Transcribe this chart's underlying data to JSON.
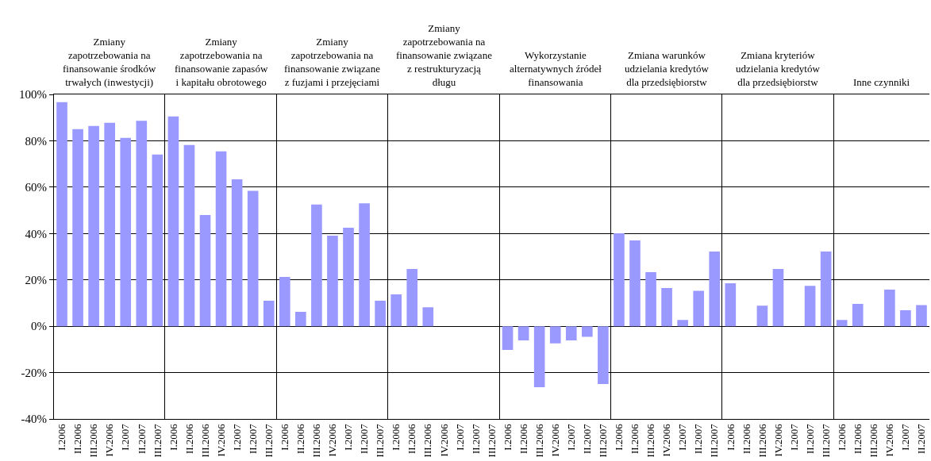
{
  "chart_data": [
    {
      "type": "bar",
      "title": "Zmiany\nzapotrzebowania na\nfinansowanie środków\ntrwałych (inwestycji)",
      "categories": [
        "I.2006",
        "II.2006",
        "III.2006",
        "IV.2006",
        "I.2007",
        "II.2007",
        "III.2007"
      ],
      "values": [
        96.7,
        85.0,
        86.4,
        87.8,
        81.3,
        88.6,
        74.1
      ],
      "color": "#9999ff",
      "ylim": [
        -40,
        100
      ],
      "yticks": [
        {
          "value": -40,
          "label": "-40%"
        },
        {
          "value": -20,
          "label": "-20%"
        },
        {
          "value": 0,
          "label": "0%"
        },
        {
          "value": 20,
          "label": "20%"
        },
        {
          "value": 40,
          "label": "40%"
        },
        {
          "value": 60,
          "label": "60%"
        },
        {
          "value": 80,
          "label": "80%"
        },
        {
          "value": 100,
          "label": "100%"
        }
      ],
      "grid": "y"
    },
    {
      "type": "bar",
      "title": "Zmiany\nzapotrzebowania na\nfinansowanie zapasów\ni kapitału obrotowego",
      "categories": [
        "I.2006",
        "II.2006",
        "III.2006",
        "IV.2006",
        "I.2007",
        "II.2007",
        "III.2007"
      ],
      "values": [
        90.5,
        78.2,
        48.0,
        75.4,
        63.4,
        58.4,
        11.0
      ],
      "color": "#9999ff",
      "ylim": [
        -40,
        100
      ],
      "yticks": [
        {
          "value": -40,
          "label": null
        },
        {
          "value": -20,
          "label": null
        },
        {
          "value": 0,
          "label": null
        },
        {
          "value": 20,
          "label": null
        },
        {
          "value": 40,
          "label": null
        },
        {
          "value": 60,
          "label": null
        },
        {
          "value": 80,
          "label": null
        },
        {
          "value": 100,
          "label": null
        }
      ],
      "grid": "y",
      "tick_labels": "x"
    },
    {
      "type": "bar",
      "title": "Zmiany\nzapotrzebowania na\nfinansowanie związane\nz fuzjami i przejęciami",
      "categories": [
        "I.2006",
        "II.2006",
        "III.2006",
        "IV.2006",
        "I.2007",
        "II.2007",
        "III.2007"
      ],
      "values": [
        21.3,
        6.2,
        52.5,
        39.1,
        42.5,
        53.0,
        11.0
      ],
      "color": "#9999ff",
      "ylim": [
        -40,
        100
      ],
      "yticks": [
        {
          "value": -40,
          "label": null
        },
        {
          "value": -20,
          "label": null
        },
        {
          "value": 0,
          "label": null
        },
        {
          "value": 20,
          "label": null
        },
        {
          "value": 40,
          "label": null
        },
        {
          "value": 60,
          "label": null
        },
        {
          "value": 80,
          "label": null
        },
        {
          "value": 100,
          "label": null
        }
      ],
      "grid": "y",
      "tick_labels": "x"
    },
    {
      "type": "bar",
      "title": "Zmiany\nzapotrzebowania na\nfinansowanie związane\nz restrukturyzacją\ndługu",
      "categories": [
        "I.2006",
        "II.2006",
        "III.2006",
        "IV.2006",
        "I.2007",
        "II.2007",
        "III.2007"
      ],
      "values": [
        13.7,
        24.7,
        8.2,
        null,
        null,
        null,
        null
      ],
      "color": "#9999ff",
      "ylim": [
        -40,
        100
      ],
      "yticks": [
        {
          "value": -40,
          "label": null
        },
        {
          "value": -20,
          "label": null
        },
        {
          "value": 0,
          "label": null
        },
        {
          "value": 20,
          "label": null
        },
        {
          "value": 40,
          "label": null
        },
        {
          "value": 60,
          "label": null
        },
        {
          "value": 80,
          "label": null
        },
        {
          "value": 100,
          "label": null
        }
      ],
      "grid": "y",
      "tick_labels": "x"
    },
    {
      "type": "bar",
      "title": "Wykorzystanie\nalternatywnych źródeł\nfinansowania",
      "categories": [
        "I.2006",
        "II.2006",
        "III.2006",
        "IV.2006",
        "I.2007",
        "II.2007",
        "III.2007"
      ],
      "values": [
        -10.2,
        -6.1,
        -26.3,
        -7.4,
        -6.1,
        -4.6,
        -24.9
      ],
      "color": "#9999ff",
      "ylim": [
        -40,
        100
      ],
      "yticks": [
        {
          "value": -40,
          "label": null
        },
        {
          "value": -20,
          "label": null
        },
        {
          "value": 0,
          "label": null
        },
        {
          "value": 20,
          "label": null
        },
        {
          "value": 40,
          "label": null
        },
        {
          "value": 60,
          "label": null
        },
        {
          "value": 80,
          "label": null
        },
        {
          "value": 100,
          "label": null
        }
      ],
      "grid": "y",
      "tick_labels": "x"
    },
    {
      "type": "bar",
      "title": "Zmiana warunków\nudzielania kredytów\ndla przedsiębiorstw",
      "categories": [
        "I.2006",
        "II.2006",
        "III.2006",
        "IV.2006",
        "I.2007",
        "II.2007",
        "III.2007"
      ],
      "values": [
        40.1,
        37.0,
        23.3,
        16.5,
        2.7,
        15.3,
        32.2
      ],
      "color": "#9999ff",
      "ylim": [
        -40,
        100
      ],
      "yticks": [
        {
          "value": -40,
          "label": null
        },
        {
          "value": -20,
          "label": null
        },
        {
          "value": 0,
          "label": null
        },
        {
          "value": 20,
          "label": null
        },
        {
          "value": 40,
          "label": null
        },
        {
          "value": 60,
          "label": null
        },
        {
          "value": 80,
          "label": null
        },
        {
          "value": 100,
          "label": null
        }
      ],
      "grid": "y",
      "tick_labels": "x"
    },
    {
      "type": "bar",
      "title": "Zmiana kryteriów\nudzielania kredytów\ndla przedsiębiorstw",
      "categories": [
        "I.2006",
        "II.2006",
        "III.2006",
        "IV.2006",
        "I.2007",
        "II.2007",
        "III.2007"
      ],
      "values": [
        18.5,
        null,
        8.9,
        24.7,
        null,
        17.4,
        32.2
      ],
      "color": "#9999ff",
      "ylim": [
        -40,
        100
      ],
      "yticks": [
        {
          "value": -40,
          "label": null
        },
        {
          "value": -20,
          "label": null
        },
        {
          "value": 0,
          "label": null
        },
        {
          "value": 20,
          "label": null
        },
        {
          "value": 40,
          "label": null
        },
        {
          "value": 60,
          "label": null
        },
        {
          "value": 80,
          "label": null
        },
        {
          "value": 100,
          "label": null
        }
      ],
      "grid": "y",
      "tick_labels": "x"
    },
    {
      "type": "bar",
      "title": "Inne czynniki",
      "categories": [
        "I.2006",
        "II.2006",
        "III.2006",
        "IV.2006",
        "I.2007",
        "II.2007"
      ],
      "values": [
        2.7,
        9.6,
        null,
        15.8,
        6.9,
        9.1
      ],
      "color": "#9999ff",
      "ylim": [
        -40,
        100
      ],
      "yticks": [
        {
          "value": -40,
          "label": null
        },
        {
          "value": -20,
          "label": null
        },
        {
          "value": 0,
          "label": null
        },
        {
          "value": 20,
          "label": null
        },
        {
          "value": 40,
          "label": null
        },
        {
          "value": 60,
          "label": null
        },
        {
          "value": 80,
          "label": null
        },
        {
          "value": 100,
          "label": null
        }
      ],
      "grid": "y",
      "tick_labels": "x"
    }
  ]
}
